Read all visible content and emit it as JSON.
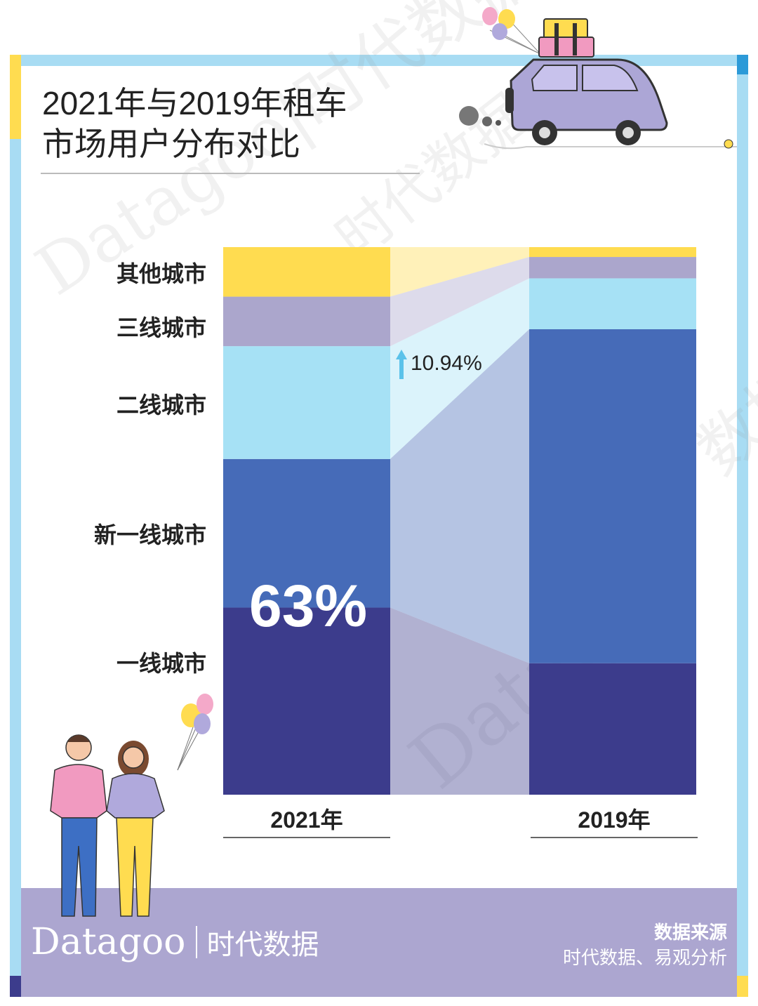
{
  "title": {
    "line1": "2021年与2019年租车",
    "line2": "市场用户分布对比"
  },
  "chart_data": {
    "type": "bar",
    "stacked": true,
    "normalized": true,
    "categories": [
      "2021年",
      "2019年"
    ],
    "series": [
      {
        "name": "一线城市",
        "values": [
          34,
          24
        ],
        "color": "#3c3c8c"
      },
      {
        "name": "新一线城市",
        "values": [
          27,
          61
        ],
        "color": "#466bb8"
      },
      {
        "name": "二线城市",
        "values": [
          20.5,
          9.3
        ],
        "color": "#a6e1f5"
      },
      {
        "name": "三线城市",
        "values": [
          9,
          3.9
        ],
        "color": "#aba6cc"
      },
      {
        "name": "其他城市",
        "values": [
          9,
          1.8
        ],
        "color": "#ffdc50"
      }
    ],
    "ylim": [
      0,
      100
    ],
    "annotations": {
      "big_value": "63%",
      "growth": "10.94%"
    }
  },
  "footer": {
    "source_title": "数据来源",
    "source_text": "时代数据、易观分析",
    "brand_en": "Datagoo",
    "brand_cn": "时代数据"
  },
  "watermarks": [
    "Datagoo|时代数据",
    "时代数据",
    "Datagoo",
    "数据"
  ],
  "colors": {
    "frame": "#a8dcf3",
    "footer_band": "#aca6d0"
  }
}
